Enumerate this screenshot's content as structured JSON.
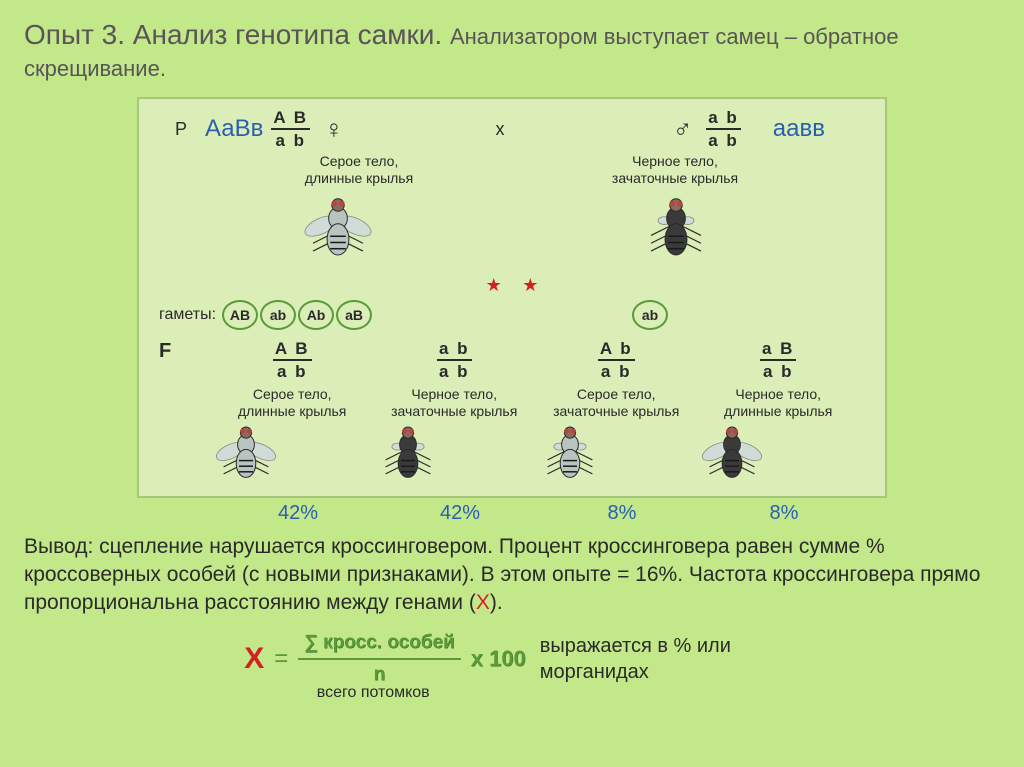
{
  "title": {
    "main": "Опыт 3. Анализ генотипа самки. ",
    "sub": "Анализатором выступает самец – обратное скрещивание.",
    "main_color": "#595459",
    "main_size": 28,
    "sub_size": 22
  },
  "colors": {
    "page_bg": "#c2e889",
    "panel_bg": "#dbeeb8",
    "panel_border": "#a4c77a",
    "text": "#2a2a2a",
    "genotype_blue": "#2a5fb0",
    "gamete_border": "#5a9a3a",
    "formula_green": "#5a9a3a",
    "red": "#d42020",
    "fly_grey_body": "#b8c4c0",
    "fly_black_body": "#3a3a3a",
    "fly_wing": "#d0dcd8",
    "fly_head": "#8a6a5a"
  },
  "parents": {
    "label": "P",
    "female": {
      "genotype_label": "АаВв",
      "frac_top": "A B",
      "frac_bot": "a b",
      "symbol": "♀",
      "phenotype_l1": "Серое тело,",
      "phenotype_l2": "длинные крылья",
      "fly_body_color": "#b8c4c0",
      "long_wings": true
    },
    "cross": "x",
    "male": {
      "genotype_label": "аавв",
      "frac_top": "a b",
      "frac_bot": "a b",
      "symbol": "♂",
      "phenotype_l1": "Черное тело,",
      "phenotype_l2": "зачаточные крылья",
      "fly_body_color": "#3a3a3a",
      "long_wings": false
    }
  },
  "stars": [
    "★",
    "★"
  ],
  "gametes": {
    "label": "гаметы:",
    "female": [
      "AB",
      "ab",
      "Ab",
      "aB"
    ],
    "male": [
      "ab"
    ]
  },
  "offspring": {
    "label": "F",
    "items": [
      {
        "frac_top": "A B",
        "frac_bot": "a b",
        "p1": "Серое тело,",
        "p2": "длинные крылья",
        "body": "#b8c4c0",
        "long": true,
        "percent": "42%"
      },
      {
        "frac_top": "a b",
        "frac_bot": "a b",
        "p1": "Черное тело,",
        "p2": "зачаточные крылья",
        "body": "#3a3a3a",
        "long": false,
        "percent": "42%"
      },
      {
        "frac_top": "A b",
        "frac_bot": "a b",
        "p1": "Серое тело,",
        "p2": "зачаточные крылья",
        "body": "#b8c4c0",
        "long": false,
        "percent": "8%"
      },
      {
        "frac_top": "a B",
        "frac_bot": "a b",
        "p1": "Черное тело,",
        "p2": "длинные крылья",
        "body": "#3a3a3a",
        "long": true,
        "percent": "8%"
      }
    ]
  },
  "conclusion": {
    "pre": "Вывод: сцепление нарушается кроссинговером. Процент кроссинговера равен сумме % кроссоверных особей (с новыми признаками). В этом опыте = 16%. Частота кроссинговера прямо пропорциональна расстоянию между генами (",
    "x": "Х",
    "post": ")."
  },
  "formula": {
    "X": "Х",
    "eq": "=",
    "numerator": "∑ кросс. особей",
    "denominator": "n",
    "denom_note": "всего потомков",
    "mult": "x 100",
    "note_l1": "выражается в % или",
    "note_l2": "морганидах"
  }
}
